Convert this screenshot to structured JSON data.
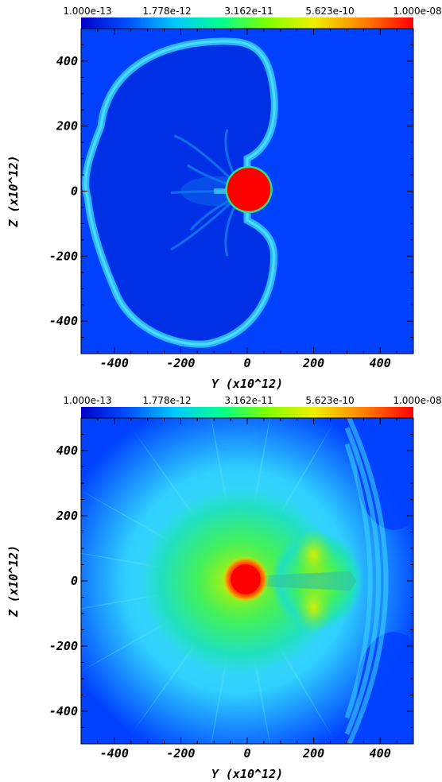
{
  "chart_data": [
    {
      "type": "heatmap",
      "colorbar": {
        "scale": "log",
        "range": [
          1e-13,
          1e-08
        ],
        "tick_labels": [
          "1.000e-13",
          "1.778e-12",
          "3.162e-11",
          "5.623e-10",
          "1.000e-08"
        ],
        "colormap": [
          "#0000c8",
          "#0050ff",
          "#00c8ff",
          "#00ff90",
          "#80ff00",
          "#f0f000",
          "#ff8000",
          "#ff0000"
        ]
      },
      "xlabel": "Y (x10^12)",
      "ylabel": "Z (x10^12)",
      "xlim": [
        -500,
        500
      ],
      "ylim": [
        -500,
        500
      ],
      "xticks": [
        "-400",
        "-200",
        "0",
        "200",
        "400"
      ],
      "yticks": [
        "400",
        "200",
        "0",
        "-200",
        "-400"
      ],
      "background": "#0040ff",
      "features": [
        {
          "kind": "cavity",
          "shape": "left-lobed ellipse",
          "center": [
            -110,
            10
          ],
          "extent_y": [
            -480,
            100
          ],
          "extent_z": [
            -470,
            460
          ],
          "color": "#0030e6"
        },
        {
          "kind": "shell",
          "description": "cyan bubble rim",
          "color": "#30d0ff"
        },
        {
          "kind": "core",
          "center": [
            5,
            5
          ],
          "radius": 65,
          "color": "#ff0000"
        }
      ]
    },
    {
      "type": "heatmap",
      "colorbar": {
        "scale": "log",
        "range": [
          1e-13,
          1e-08
        ],
        "tick_labels": [
          "1.000e-13",
          "1.778e-12",
          "3.162e-11",
          "5.623e-10",
          "1.000e-08"
        ],
        "colormap": [
          "#0000c8",
          "#0050ff",
          "#00c8ff",
          "#00ff90",
          "#80ff00",
          "#f0f000",
          "#ff8000",
          "#ff0000"
        ]
      },
      "xlabel": "Y (x10^12)",
      "ylabel": "Z (x10^12)",
      "xlim": [
        -500,
        500
      ],
      "ylim": [
        -500,
        500
      ],
      "xticks": [
        "-400",
        "-200",
        "0",
        "200",
        "400"
      ],
      "yticks": [
        "400",
        "200",
        "0",
        "-200",
        "-400"
      ],
      "background": "#0040ff",
      "features": [
        {
          "kind": "halo",
          "center": [
            -20,
            0
          ],
          "color": "#30d8ff"
        },
        {
          "kind": "green-envelope",
          "center": [
            -10,
            0
          ],
          "color": "#40f060"
        },
        {
          "kind": "jet",
          "direction": "+Y",
          "extent_y": [
            0,
            330
          ],
          "color": "#c8f000"
        },
        {
          "kind": "core",
          "center": [
            -5,
            5
          ],
          "radius": 45,
          "color": "#ff0000"
        }
      ]
    }
  ]
}
